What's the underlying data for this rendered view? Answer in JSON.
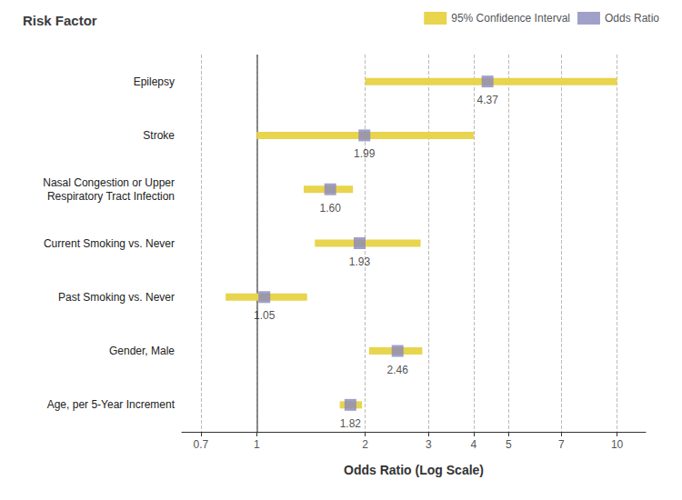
{
  "chart_data": {
    "type": "forest",
    "title": "Risk Factor",
    "xlabel": "Odds Ratio (Log Scale)",
    "categories": [
      "Epilepsy",
      "Stroke",
      "Nasal Congestion or Upper\nRespiratory Tract Infection",
      "Current Smoking vs. Never",
      "Past Smoking vs. Never",
      "Gender, Male",
      "Age, per 5-Year Increment"
    ],
    "series": [
      {
        "name": "95% Confidence Interval",
        "type": "interval",
        "color": "#E8D44D",
        "low": [
          2.0,
          1.0,
          1.35,
          1.45,
          0.82,
          2.05,
          1.7
        ],
        "high": [
          10.0,
          4.0,
          1.85,
          2.85,
          1.38,
          2.88,
          1.96
        ]
      },
      {
        "name": "Odds Ratio",
        "type": "scatter",
        "marker": "square",
        "color": "#8888bb",
        "values": [
          4.37,
          1.99,
          1.6,
          1.93,
          1.05,
          2.46,
          1.82
        ],
        "value_labels": [
          "4.37",
          "1.99",
          "1.60",
          "1.93",
          "1.05",
          "2.46",
          "1.82"
        ]
      }
    ],
    "ref_line_x": 1,
    "log": "x",
    "xlim": [
      0.62,
      12.0
    ],
    "xticks": [
      0.7,
      1,
      2,
      3,
      4,
      5,
      7,
      10
    ],
    "grid": true,
    "legend": "upper right",
    "data_labels": true
  }
}
